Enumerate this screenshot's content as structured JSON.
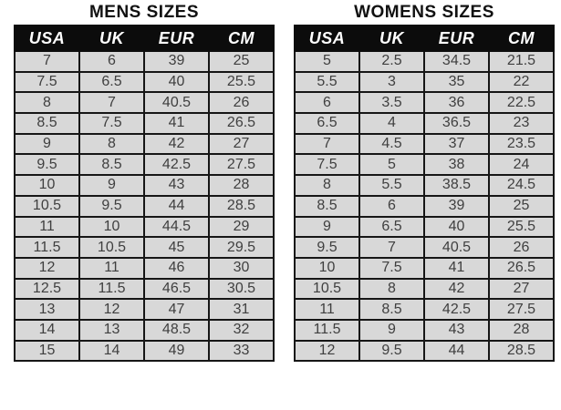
{
  "colors": {
    "background": "#ffffff",
    "header_bg": "#0c0c0c",
    "header_text": "#ffffff",
    "row_bg": "#d8d8d8",
    "border": "#161616",
    "cell_text": "#3f3f3f",
    "title_text": "#111111"
  },
  "chart_data": [
    {
      "type": "table",
      "title": "MENS SIZES",
      "columns": [
        "USA",
        "UK",
        "EUR",
        "CM"
      ],
      "rows": [
        [
          "7",
          "6",
          "39",
          "25"
        ],
        [
          "7.5",
          "6.5",
          "40",
          "25.5"
        ],
        [
          "8",
          "7",
          "40.5",
          "26"
        ],
        [
          "8.5",
          "7.5",
          "41",
          "26.5"
        ],
        [
          "9",
          "8",
          "42",
          "27"
        ],
        [
          "9.5",
          "8.5",
          "42.5",
          "27.5"
        ],
        [
          "10",
          "9",
          "43",
          "28"
        ],
        [
          "10.5",
          "9.5",
          "44",
          "28.5"
        ],
        [
          "11",
          "10",
          "44.5",
          "29"
        ],
        [
          "11.5",
          "10.5",
          "45",
          "29.5"
        ],
        [
          "12",
          "11",
          "46",
          "30"
        ],
        [
          "12.5",
          "11.5",
          "46.5",
          "30.5"
        ],
        [
          "13",
          "12",
          "47",
          "31"
        ],
        [
          "14",
          "13",
          "48.5",
          "32"
        ],
        [
          "15",
          "14",
          "49",
          "33"
        ]
      ]
    },
    {
      "type": "table",
      "title": "WOMENS SIZES",
      "columns": [
        "USA",
        "UK",
        "EUR",
        "CM"
      ],
      "rows": [
        [
          "5",
          "2.5",
          "34.5",
          "21.5"
        ],
        [
          "5.5",
          "3",
          "35",
          "22"
        ],
        [
          "6",
          "3.5",
          "36",
          "22.5"
        ],
        [
          "6.5",
          "4",
          "36.5",
          "23"
        ],
        [
          "7",
          "4.5",
          "37",
          "23.5"
        ],
        [
          "7.5",
          "5",
          "38",
          "24"
        ],
        [
          "8",
          "5.5",
          "38.5",
          "24.5"
        ],
        [
          "8.5",
          "6",
          "39",
          "25"
        ],
        [
          "9",
          "6.5",
          "40",
          "25.5"
        ],
        [
          "9.5",
          "7",
          "40.5",
          "26"
        ],
        [
          "10",
          "7.5",
          "41",
          "26.5"
        ],
        [
          "10.5",
          "8",
          "42",
          "27"
        ],
        [
          "11",
          "8.5",
          "42.5",
          "27.5"
        ],
        [
          "11.5",
          "9",
          "43",
          "28"
        ],
        [
          "12",
          "9.5",
          "44",
          "28.5"
        ]
      ]
    }
  ]
}
